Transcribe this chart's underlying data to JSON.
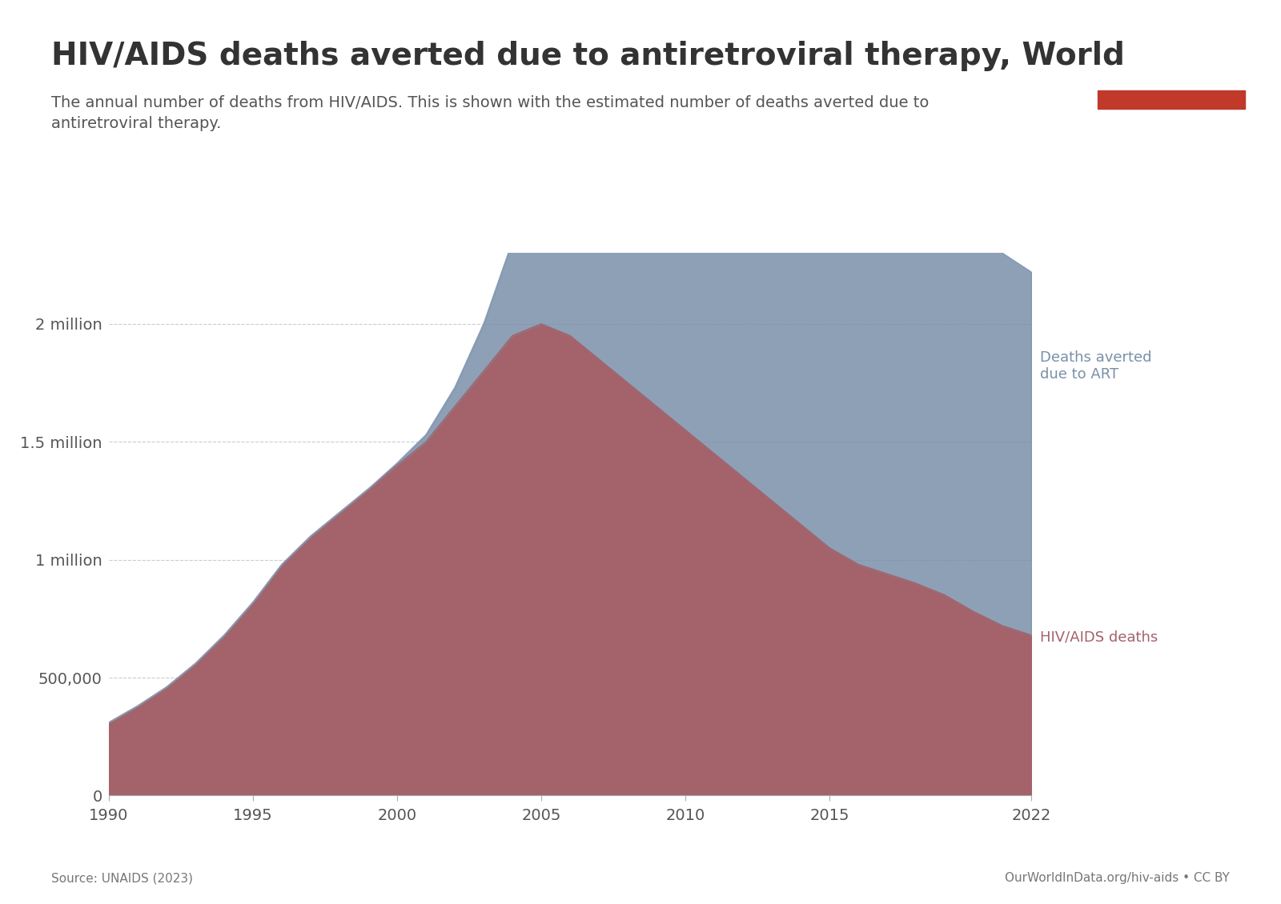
{
  "title": "HIV/AIDS deaths averted due to antiretroviral therapy, World",
  "subtitle": "The annual number of deaths from HIV/AIDS. This is shown with the estimated number of deaths averted due to\nantiretroviral therapy.",
  "source_left": "Source: UNAIDS (2023)",
  "source_right": "OurWorldInData.org/hiv-aids • CC BY",
  "years": [
    1990,
    1991,
    1992,
    1993,
    1994,
    1995,
    1996,
    1997,
    1998,
    1999,
    2000,
    2001,
    2002,
    2003,
    2004,
    2005,
    2006,
    2007,
    2008,
    2009,
    2010,
    2011,
    2012,
    2013,
    2014,
    2015,
    2016,
    2017,
    2018,
    2019,
    2020,
    2021,
    2022
  ],
  "hiv_deaths": [
    310000,
    380000,
    460000,
    560000,
    680000,
    820000,
    980000,
    1100000,
    1200000,
    1300000,
    1400000,
    1500000,
    1650000,
    1800000,
    1950000,
    2000000,
    1950000,
    1850000,
    1750000,
    1650000,
    1550000,
    1450000,
    1350000,
    1250000,
    1150000,
    1050000,
    980000,
    940000,
    900000,
    850000,
    780000,
    720000,
    680000
  ],
  "deaths_averted": [
    0,
    0,
    0,
    0,
    0,
    0,
    0,
    0,
    0,
    0,
    10000,
    30000,
    80000,
    200000,
    400000,
    600000,
    850000,
    1050000,
    1200000,
    1350000,
    1500000,
    1600000,
    1700000,
    1750000,
    1800000,
    1800000,
    1780000,
    1750000,
    1720000,
    1680000,
    1630000,
    1580000,
    1540000
  ],
  "hiv_color": "#a4626a",
  "art_color": "#7a8fa8",
  "background_color": "#ffffff",
  "ytick_labels": [
    "0",
    "500,000",
    "1 million",
    "1.5 million",
    "2 million"
  ],
  "ytick_values": [
    0,
    500000,
    1000000,
    1500000,
    2000000
  ],
  "xtick_labels": [
    "1990",
    "1995",
    "2000",
    "2005",
    "2010",
    "2015",
    "2022"
  ],
  "xtick_values": [
    1990,
    1995,
    2000,
    2005,
    2010,
    2015,
    2022
  ],
  "ylim": [
    0,
    2300000
  ],
  "xlim": [
    1990,
    2022
  ],
  "label_art": "Deaths averted\ndue to ART",
  "label_hiv": "HIV/AIDS deaths",
  "title_fontsize": 28,
  "subtitle_fontsize": 14,
  "label_fontsize": 13,
  "tick_fontsize": 14
}
